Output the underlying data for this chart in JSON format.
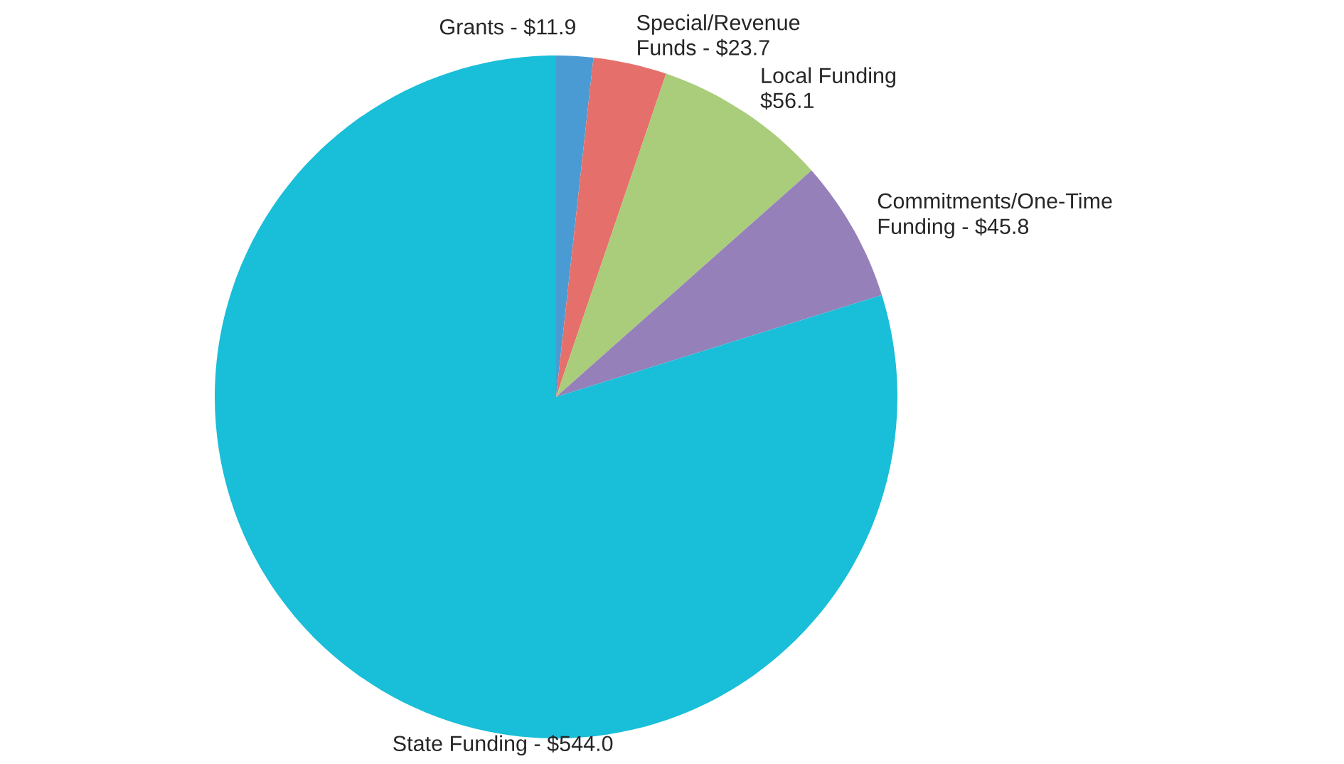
{
  "chart_data": {
    "type": "pie",
    "categories": [
      "Grants - $11.9",
      "Special/Revenue\nFunds - $23.7",
      "Local Funding\n$56.1",
      "Commitments/One-Time\nFunding - $45.8",
      "State Funding - $544.0"
    ],
    "values": [
      11.9,
      23.7,
      56.1,
      45.8,
      544.0
    ],
    "colors": [
      "#4a9bd4",
      "#e5706b",
      "#a9cd7a",
      "#9580ba",
      "#19bed8"
    ],
    "legend": false
  }
}
